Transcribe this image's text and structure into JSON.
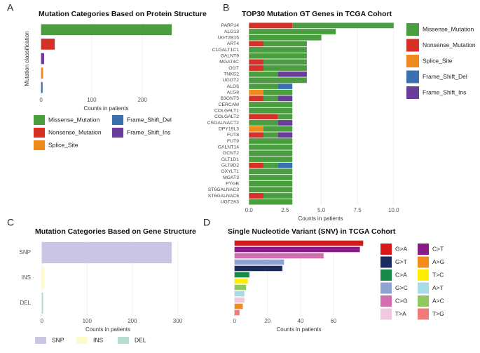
{
  "chart_data": [
    {
      "panel": "A",
      "type": "bar",
      "orientation": "horizontal",
      "title": "Mutation Categories Based on Protein Structure",
      "xlabel": "Counts in patients",
      "ylabel": "Mutation classification",
      "series": [
        {
          "name": "Missense_Mutation",
          "color": "#4a9e3f",
          "values": [
            258
          ]
        },
        {
          "name": "Nonsense_Mutation",
          "color": "#d63027",
          "values": [
            27
          ]
        },
        {
          "name": "Splice_Site",
          "color": "#ef8a1e",
          "values": [
            4
          ]
        },
        {
          "name": "Frame_Shift_Del",
          "color": "#3a6fb0",
          "values": [
            3
          ]
        },
        {
          "name": "Frame_Shift_Ins",
          "color": "#6a3d9a",
          "values": [
            6
          ]
        }
      ],
      "xlim": [
        -5,
        262
      ],
      "xticks": [
        0,
        100,
        200
      ],
      "grid": true,
      "legend": "bottom"
    },
    {
      "panel": "B",
      "type": "stacked_bar",
      "orientation": "horizontal",
      "title": "TOP30 Mutation GT Genes in TCGA Cohort",
      "xlabel": "Counts in patients",
      "categories": [
        "PARP14",
        "ALG13",
        "UGT2B15",
        "ART4",
        "C1GALT1C1",
        "GALNT9",
        "MGAT4C",
        "OGT",
        "TNKS2",
        "UGGT2",
        "ALG6",
        "ALG8",
        "B3GNT5",
        "CERCAM",
        "COLGALT1",
        "COLGALT2",
        "CSGALNACT2",
        "DPY19L3",
        "FUT8",
        "FUT9",
        "GALNT14",
        "GCNT2",
        "GLT1D1",
        "GLT8D2",
        "GXYLT1",
        "MGAT3",
        "PYGB",
        "ST6GALNAC3",
        "ST6GALNAC6",
        "UGT2A3"
      ],
      "series": [
        {
          "name": "Missense_Mutation",
          "color": "#4a9e3f",
          "values": [
            7,
            6,
            5,
            3,
            4,
            4,
            3,
            3,
            2,
            4,
            2,
            2,
            1,
            3,
            3,
            1,
            2,
            2,
            1,
            3,
            3,
            3,
            3,
            1,
            3,
            3,
            3,
            3,
            2,
            3
          ]
        },
        {
          "name": "Nonsense_Mutation",
          "color": "#d63027",
          "values": [
            3,
            0,
            0,
            1,
            0,
            0,
            1,
            1,
            0,
            0,
            0,
            0,
            1,
            0,
            0,
            2,
            0,
            0,
            1,
            0,
            0,
            0,
            0,
            1,
            0,
            0,
            0,
            0,
            1,
            0
          ]
        },
        {
          "name": "Splice_Site",
          "color": "#ef8a1e",
          "values": [
            0,
            0,
            0,
            0,
            0,
            0,
            0,
            0,
            0,
            0,
            0,
            1,
            0,
            0,
            0,
            0,
            0,
            1,
            0,
            0,
            0,
            0,
            0,
            0,
            0,
            0,
            0,
            0,
            0,
            0
          ]
        },
        {
          "name": "Frame_Shift_Del",
          "color": "#3a6fb0",
          "values": [
            0,
            0,
            0,
            0,
            0,
            0,
            0,
            0,
            0,
            0,
            1,
            0,
            0,
            0,
            0,
            0,
            0,
            0,
            0,
            0,
            0,
            0,
            0,
            1,
            0,
            0,
            0,
            0,
            0,
            0
          ]
        },
        {
          "name": "Frame_Shift_Ins",
          "color": "#6a3d9a",
          "values": [
            0,
            0,
            0,
            0,
            0,
            0,
            0,
            0,
            2,
            0,
            0,
            0,
            1,
            0,
            0,
            0,
            1,
            0,
            1,
            0,
            0,
            0,
            0,
            0,
            0,
            0,
            0,
            0,
            0,
            0
          ]
        }
      ],
      "xlim": [
        -0.5,
        10.4
      ],
      "xticks": [
        {
          "value": 0,
          "label": "0.0"
        },
        {
          "value": 2.5,
          "label": "2.5"
        },
        {
          "value": 5,
          "label": "5.0"
        },
        {
          "value": 7.5,
          "label": "7.5"
        },
        {
          "value": 10,
          "label": "10.0"
        }
      ],
      "grid": true,
      "legend": "right"
    },
    {
      "panel": "C",
      "type": "bar",
      "orientation": "horizontal",
      "title": "Mutation Categories Based on Gene Structure",
      "xlabel": "Counts in patients",
      "categories": [
        "SNP",
        "INS",
        "DEL"
      ],
      "values": [
        287,
        6,
        3
      ],
      "colors": [
        "#c9c5e3",
        "#fdfbc9",
        "#b6ddd1"
      ],
      "xlim": [
        -15,
        307
      ],
      "xticks": [
        0,
        100,
        200,
        300
      ],
      "grid": true,
      "legend": "bottom"
    },
    {
      "panel": "D",
      "type": "bar",
      "orientation": "horizontal",
      "title": "Single Nucleotide Variant (SNV) in TCGA Cohort",
      "xlabel": "Counts in patients",
      "categories": [
        "G>A",
        "C>T",
        "C>G",
        "G>C",
        "G>T",
        "C>A",
        "T>C",
        "A>C",
        "A>T",
        "T>A",
        "A>G",
        "T>G"
      ],
      "values": [
        78,
        76,
        54,
        30,
        29,
        9,
        8,
        7,
        6,
        6,
        5,
        3
      ],
      "colors": [
        "#d7191c",
        "#8b1a89",
        "#d36db0",
        "#8fa3d1",
        "#1a2b5e",
        "#1a8a4a",
        "#ffee00",
        "#90c860",
        "#a8dbe8",
        "#f0c8e0",
        "#f28a1c",
        "#f07a7a"
      ],
      "xlim": [
        -2,
        80
      ],
      "xticks": [
        0,
        20,
        40,
        60
      ],
      "grid": true,
      "legend": "right"
    }
  ]
}
